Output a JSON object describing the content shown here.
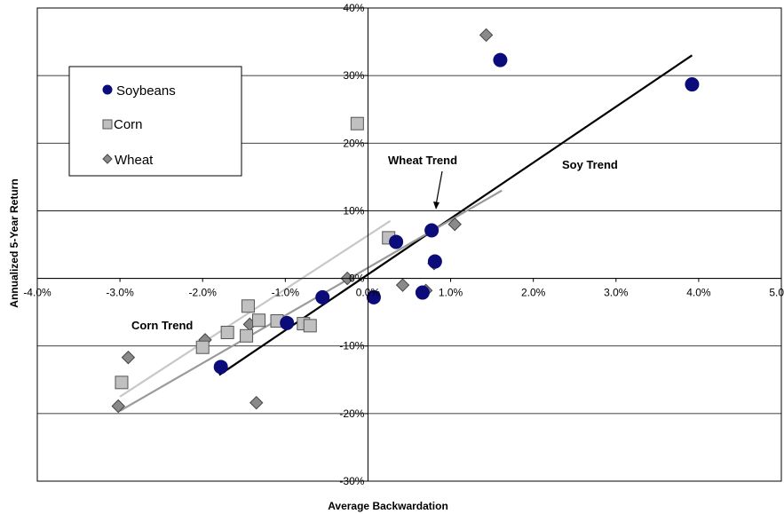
{
  "chart_data": {
    "type": "scatter",
    "title": "",
    "xlabel": "Average  Backwardation",
    "ylabel": "Annualized 5-Year Return",
    "xlim": [
      -0.04,
      0.05
    ],
    "ylim": [
      -0.3,
      0.4
    ],
    "x_ticks": [
      "-4.0%",
      "-3.0%",
      "-2.0%",
      "-1.0%",
      "0.0%",
      "1.0%",
      "2.0%",
      "3.0%",
      "4.0%",
      "5.0%"
    ],
    "y_ticks": [
      "-30%",
      "-20%",
      "-10%",
      "0%",
      "10%",
      "20%",
      "30%",
      "40%"
    ],
    "grid": "horizontal",
    "legend_position": "top-left",
    "series": [
      {
        "name": "Soybeans",
        "marker": "circle",
        "color": "#0b0b7a",
        "points": [
          [
            0.016,
            0.323
          ],
          [
            0.0392,
            0.287
          ],
          [
            0.0007,
            -0.028
          ],
          [
            0.0034,
            0.054
          ],
          [
            0.0077,
            0.071
          ],
          [
            0.0081,
            0.025
          ],
          [
            -0.0055,
            -0.028
          ],
          [
            -0.0098,
            -0.066
          ],
          [
            0.0066,
            -0.021
          ],
          [
            -0.0178,
            -0.131
          ]
        ]
      },
      {
        "name": "Corn",
        "marker": "square",
        "color": "#c0c0c0",
        "points": [
          [
            -0.0013,
            0.229
          ],
          [
            0.0025,
            0.06
          ],
          [
            -0.0145,
            -0.041
          ],
          [
            -0.0132,
            -0.062
          ],
          [
            -0.011,
            -0.063
          ],
          [
            -0.017,
            -0.08
          ],
          [
            -0.0147,
            -0.085
          ],
          [
            -0.0078,
            -0.067
          ],
          [
            -0.007,
            -0.07
          ],
          [
            -0.02,
            -0.102
          ],
          [
            -0.0298,
            -0.154
          ]
        ]
      },
      {
        "name": "Wheat",
        "marker": "diamond",
        "color": "#8a8a8a",
        "points": [
          [
            0.0143,
            0.36
          ],
          [
            0.0105,
            0.08
          ],
          [
            0.008,
            0.022
          ],
          [
            0.0042,
            -0.01
          ],
          [
            0.007,
            -0.018
          ],
          [
            -0.0025,
            0.0
          ],
          [
            -0.0197,
            -0.091
          ],
          [
            -0.0143,
            -0.068
          ],
          [
            -0.029,
            -0.117
          ],
          [
            -0.0135,
            -0.184
          ],
          [
            -0.0302,
            -0.189
          ]
        ]
      }
    ],
    "trendlines": [
      {
        "name": "Soy Trend",
        "color": "#000000",
        "from": [
          -0.018,
          -0.143
        ],
        "to": [
          0.0392,
          0.33
        ]
      },
      {
        "name": "Wheat Trend",
        "color": "#9a9a9a",
        "from": [
          -0.03,
          -0.196
        ],
        "to": [
          0.0162,
          0.13
        ]
      },
      {
        "name": "Corn Trend",
        "color": "#c8c8c8",
        "from": [
          -0.03,
          -0.175
        ],
        "to": [
          0.0027,
          0.085
        ]
      }
    ],
    "annotations": [
      "Wheat Trend",
      "Soy Trend",
      "Corn Trend"
    ]
  }
}
